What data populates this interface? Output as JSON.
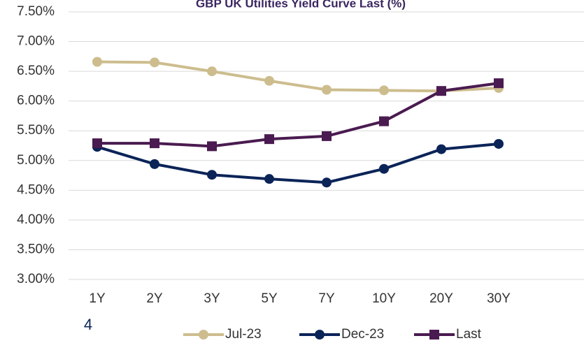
{
  "chart_data": {
    "type": "line",
    "title": "GBP UK Utilities Yield Curve Last (%)",
    "categories": [
      "1Y",
      "2Y",
      "3Y",
      "5Y",
      "7Y",
      "10Y",
      "20Y",
      "30Y"
    ],
    "series": [
      {
        "name": "Jul-23",
        "color": "#cdbd8e",
        "marker": "circle",
        "values": [
          6.66,
          6.65,
          6.5,
          6.34,
          6.19,
          6.18,
          6.17,
          6.22
        ]
      },
      {
        "name": "Dec-23",
        "color": "#0b2458",
        "marker": "circle",
        "values": [
          5.23,
          4.94,
          4.76,
          4.69,
          4.63,
          4.86,
          5.19,
          5.28
        ]
      },
      {
        "name": "Last",
        "color": "#4a1b50",
        "marker": "square",
        "values": [
          5.29,
          5.29,
          5.24,
          5.36,
          5.41,
          5.66,
          6.17,
          6.3
        ]
      }
    ],
    "ylim": [
      3.0,
      7.5
    ],
    "yticks": [
      {
        "value": 3.0,
        "label": "3.00%"
      },
      {
        "value": 3.5,
        "label": "3.50%"
      },
      {
        "value": 4.0,
        "label": "4.00%"
      },
      {
        "value": 4.5,
        "label": "4.50%"
      },
      {
        "value": 5.0,
        "label": "5.00%"
      },
      {
        "value": 5.5,
        "label": "5.50%"
      },
      {
        "value": 6.0,
        "label": "6.00%"
      },
      {
        "value": 6.5,
        "label": "6.50%"
      },
      {
        "value": 7.0,
        "label": "7.00%"
      },
      {
        "value": 7.5,
        "label": "7.50%"
      }
    ],
    "grid": true,
    "legend": "bottom",
    "annotations": [
      "4"
    ]
  }
}
